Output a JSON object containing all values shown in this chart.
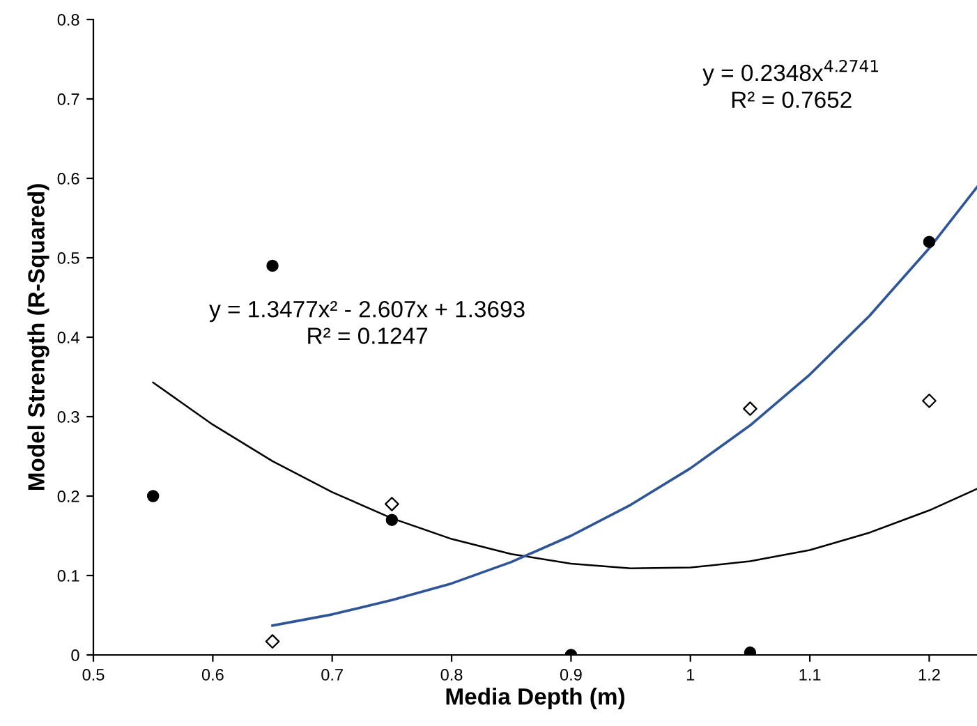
{
  "chart_data": {
    "type": "scatter",
    "xlabel": "Media Depth (m)",
    "ylabel": "Model Strength (R-Squared)",
    "xlim": [
      0.5,
      1.24
    ],
    "ylim": [
      0,
      0.8
    ],
    "xticks": [
      0.5,
      0.6,
      0.7,
      0.8,
      0.9,
      1,
      1.1,
      1.2
    ],
    "yticks": [
      0,
      0.1,
      0.2,
      0.3,
      0.4,
      0.5,
      0.6,
      0.7,
      0.8
    ],
    "grid": false,
    "series": [
      {
        "marker": "circle",
        "color": "#000000",
        "x": [
          0.55,
          0.65,
          0.75,
          0.9,
          1.05,
          1.2
        ],
        "values": [
          0.2,
          0.49,
          0.17,
          0.0,
          0.003,
          0.52
        ]
      },
      {
        "marker": "diamond",
        "color": "#ffffff",
        "x": [
          0.65,
          0.75,
          1.05,
          1.2
        ],
        "values": [
          0.017,
          0.19,
          0.31,
          0.32
        ]
      },
      {
        "type": "line",
        "marker": "none",
        "color": "#000000",
        "x": [
          0.55,
          0.6,
          0.65,
          0.7,
          0.75,
          0.8,
          0.85,
          0.9,
          0.95,
          1.0,
          1.05,
          1.1,
          1.15,
          1.2,
          1.24
        ],
        "values": [
          0.343,
          0.29,
          0.244,
          0.205,
          0.172,
          0.146,
          0.127,
          0.115,
          0.109,
          0.11,
          0.118,
          0.132,
          0.154,
          0.182,
          0.209
        ]
      },
      {
        "type": "line",
        "marker": "none",
        "color": "#2e5597",
        "x": [
          0.65,
          0.7,
          0.75,
          0.8,
          0.85,
          0.9,
          0.95,
          1.0,
          1.05,
          1.1,
          1.15,
          1.2,
          1.24
        ],
        "values": [
          0.037,
          0.051,
          0.069,
          0.09,
          0.117,
          0.15,
          0.189,
          0.235,
          0.289,
          0.353,
          0.427,
          0.512,
          0.589
        ]
      }
    ],
    "annotations": [
      "y = 1.3477x² - 2.607x + 1.3693\nR² = 0.1247",
      "y = 0.2348x$^{4.2741}$\nR² = 0.7652"
    ]
  }
}
